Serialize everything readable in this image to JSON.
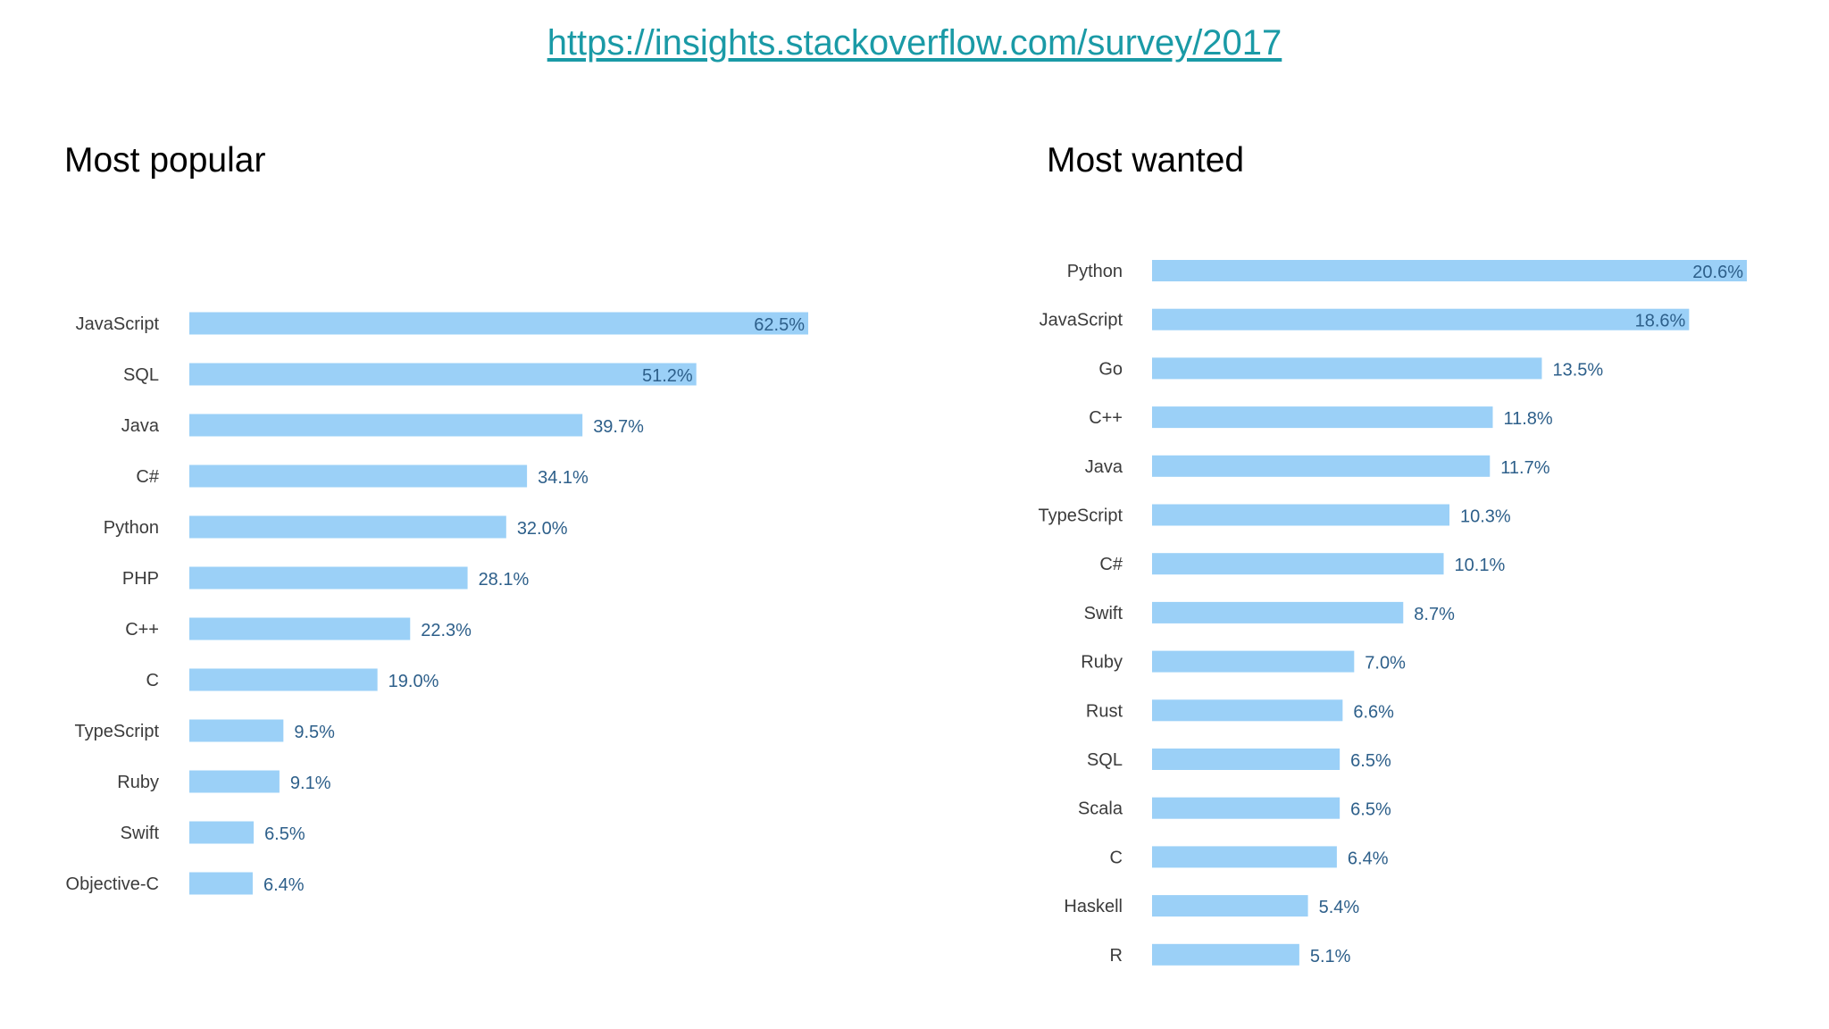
{
  "link": {
    "text": "https://insights.stackoverflow.com/survey/2017"
  },
  "colors": {
    "bar": "#9bd0f7",
    "link": "#1a9aa6",
    "value_text": "#2d5f8a",
    "category_text": "#3b3b3b"
  },
  "chart_data": [
    {
      "type": "bar",
      "orientation": "horizontal",
      "title": "Most popular",
      "xlabel": "",
      "ylabel": "",
      "grid": false,
      "categories": [
        "JavaScript",
        "SQL",
        "Java",
        "C#",
        "Python",
        "PHP",
        "C++",
        "C",
        "TypeScript",
        "Ruby",
        "Swift",
        "Objective-C"
      ],
      "values": [
        62.5,
        51.2,
        39.7,
        34.1,
        32.0,
        28.1,
        22.3,
        19.0,
        9.5,
        9.1,
        6.5,
        6.4
      ],
      "value_labels": [
        "62.5%",
        "51.2%",
        "39.7%",
        "34.1%",
        "32.0%",
        "28.1%",
        "22.3%",
        "19.0%",
        "9.5%",
        "9.1%",
        "6.5%",
        "6.4%"
      ]
    },
    {
      "type": "bar",
      "orientation": "horizontal",
      "title": "Most wanted",
      "xlabel": "",
      "ylabel": "",
      "grid": false,
      "categories": [
        "Python",
        "JavaScript",
        "Go",
        "C++",
        "Java",
        "TypeScript",
        "C#",
        "Swift",
        "Ruby",
        "Rust",
        "SQL",
        "Scala",
        "C",
        "Haskell",
        "R"
      ],
      "values": [
        20.6,
        18.6,
        13.5,
        11.8,
        11.7,
        10.3,
        10.1,
        8.7,
        7.0,
        6.6,
        6.5,
        6.5,
        6.4,
        5.4,
        5.1
      ],
      "value_labels": [
        "20.6%",
        "18.6%",
        "13.5%",
        "11.8%",
        "11.7%",
        "10.3%",
        "10.1%",
        "8.7%",
        "7.0%",
        "6.6%",
        "6.5%",
        "6.5%",
        "6.4%",
        "5.4%",
        "5.1%"
      ]
    }
  ]
}
